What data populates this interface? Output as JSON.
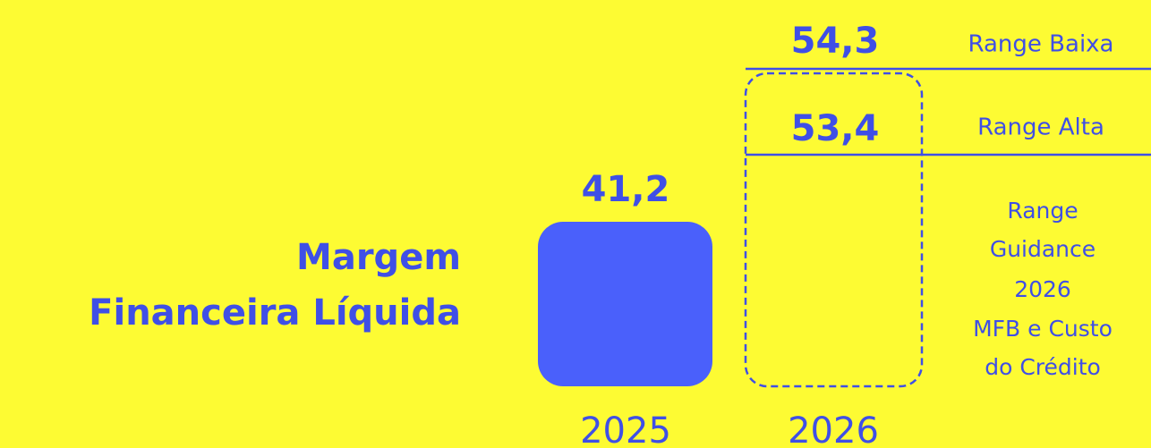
{
  "title": {
    "lines": [
      "Margem",
      "Financeira Líquida"
    ]
  },
  "columns": [
    {
      "year": "2025",
      "value": "41,2"
    },
    {
      "year": "2026"
    }
  ],
  "ranges": [
    {
      "value": "54,3",
      "label": "Range Baixa"
    },
    {
      "value": "53,4",
      "label": "Range Alta"
    }
  ],
  "note": {
    "lines": [
      "Range",
      "Guidance",
      "2026",
      "MFB e Custo",
      "do Crédito"
    ]
  }
}
